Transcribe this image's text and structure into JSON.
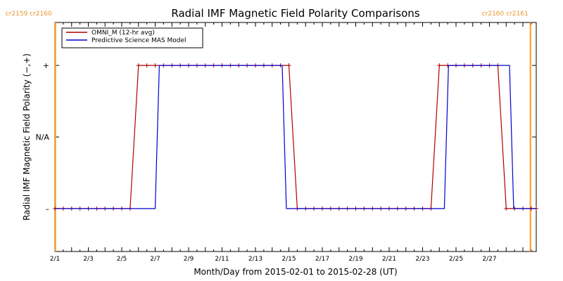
{
  "chart_data": {
    "type": "line",
    "title": "Radial IMF Magnetic Field Polarity Comparisons",
    "xlabel": "Month/Day from 2015-02-01 to 2015-02-28 (UT)",
    "ylabel": "Radial IMF Magnetic Field Polarity (−,+)",
    "x_unit": "day of February 2015",
    "xlim": [
      1,
      29.8
    ],
    "ylim": [
      -1.6,
      1.6
    ],
    "x_ticks": [
      {
        "value": 1,
        "label": "2/1"
      },
      {
        "value": 3,
        "label": "2/3"
      },
      {
        "value": 5,
        "label": "2/5"
      },
      {
        "value": 7,
        "label": "2/7"
      },
      {
        "value": 9,
        "label": "2/9"
      },
      {
        "value": 11,
        "label": "2/11"
      },
      {
        "value": 13,
        "label": "2/13"
      },
      {
        "value": 15,
        "label": "2/15"
      },
      {
        "value": 17,
        "label": "2/17"
      },
      {
        "value": 19,
        "label": "2/19"
      },
      {
        "value": 21,
        "label": "2/21"
      },
      {
        "value": 23,
        "label": "2/23"
      },
      {
        "value": 25,
        "label": "2/25"
      },
      {
        "value": 27,
        "label": "2/27"
      }
    ],
    "y_ticks": [
      {
        "value": 1,
        "label": "+"
      },
      {
        "value": 0,
        "label": "N/A"
      },
      {
        "value": -1,
        "label": "–"
      }
    ],
    "legend_position": "top-left",
    "carrington_markers": [
      {
        "x": 1.03,
        "labels": [
          "cr2159",
          "cr2160"
        ],
        "side": "left"
      },
      {
        "x": 29.45,
        "labels": [
          "cr2160",
          "cr2161"
        ],
        "side": "right"
      }
    ],
    "colors": {
      "omni": "#b00000",
      "mas": "#0000cc",
      "carrington": "#ff9a1a",
      "axis": "#000000"
    },
    "series": [
      {
        "name": "OMNI_M (12-hr avg)",
        "color": "#b00000",
        "markers": true,
        "points": [
          [
            1.0,
            -1
          ],
          [
            1.5,
            -1
          ],
          [
            2.0,
            -1
          ],
          [
            2.5,
            -1
          ],
          [
            3.0,
            -1
          ],
          [
            3.5,
            -1
          ],
          [
            4.0,
            -1
          ],
          [
            4.5,
            -1
          ],
          [
            5.0,
            -1
          ],
          [
            5.5,
            -1
          ],
          [
            6.0,
            1
          ],
          [
            6.5,
            1
          ],
          [
            7.0,
            1
          ],
          [
            7.5,
            1
          ],
          [
            8.0,
            1
          ],
          [
            8.5,
            1
          ],
          [
            9.0,
            1
          ],
          [
            9.5,
            1
          ],
          [
            10.0,
            1
          ],
          [
            10.5,
            1
          ],
          [
            11.0,
            1
          ],
          [
            11.5,
            1
          ],
          [
            12.0,
            1
          ],
          [
            12.5,
            1
          ],
          [
            13.0,
            1
          ],
          [
            13.5,
            1
          ],
          [
            14.0,
            1
          ],
          [
            14.5,
            1
          ],
          [
            15.0,
            1
          ],
          [
            15.5,
            -1
          ],
          [
            16.0,
            -1
          ],
          [
            16.5,
            -1
          ],
          [
            17.0,
            -1
          ],
          [
            17.5,
            -1
          ],
          [
            18.0,
            -1
          ],
          [
            18.5,
            -1
          ],
          [
            19.0,
            -1
          ],
          [
            19.5,
            -1
          ],
          [
            20.0,
            -1
          ],
          [
            20.5,
            -1
          ],
          [
            21.0,
            -1
          ],
          [
            21.5,
            -1
          ],
          [
            22.0,
            -1
          ],
          [
            22.5,
            -1
          ],
          [
            23.0,
            -1
          ],
          [
            23.5,
            -1
          ],
          [
            24.0,
            1
          ],
          [
            24.5,
            1
          ],
          [
            25.0,
            1
          ],
          [
            25.5,
            1
          ],
          [
            26.0,
            1
          ],
          [
            26.5,
            1
          ],
          [
            27.0,
            1
          ],
          [
            27.5,
            1
          ],
          [
            28.0,
            -1
          ],
          [
            28.5,
            -1
          ],
          [
            29.0,
            -1
          ],
          [
            29.5,
            -1
          ],
          [
            29.8,
            -1
          ]
        ]
      },
      {
        "name": "Predictive Science MAS Model",
        "color": "#0000cc",
        "markers": false,
        "points": [
          [
            1.0,
            -1
          ],
          [
            7.0,
            -1
          ],
          [
            7.25,
            1
          ],
          [
            14.6,
            1
          ],
          [
            14.85,
            -1
          ],
          [
            24.3,
            -1
          ],
          [
            24.55,
            1
          ],
          [
            28.2,
            1
          ],
          [
            28.45,
            -1
          ],
          [
            29.8,
            -1
          ]
        ]
      }
    ]
  }
}
